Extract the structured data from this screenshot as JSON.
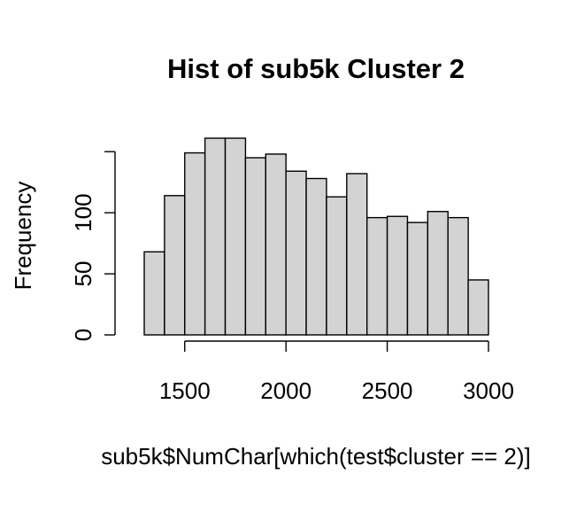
{
  "chart_data": {
    "type": "bar",
    "title": "Hist of sub5k Cluster 2",
    "xlabel": "sub5k$NumChar[which(test$cluster == 2)]",
    "ylabel": "Frequency",
    "bin_edges": [
      1300,
      1400,
      1500,
      1600,
      1700,
      1800,
      1900,
      2000,
      2100,
      2200,
      2300,
      2400,
      2500,
      2600,
      2700,
      2800,
      2900,
      3000
    ],
    "values": [
      68,
      114,
      149,
      161,
      161,
      145,
      148,
      134,
      128,
      113,
      132,
      96,
      97,
      92,
      101,
      96,
      45
    ],
    "xlim": [
      1300,
      3000
    ],
    "ylim": [
      0,
      161
    ],
    "xticks": [
      1500,
      2000,
      2500,
      3000
    ],
    "yticks": [
      0,
      50,
      100
    ],
    "grid": false,
    "legend": "none",
    "bar_color": "#d3d3d3"
  }
}
